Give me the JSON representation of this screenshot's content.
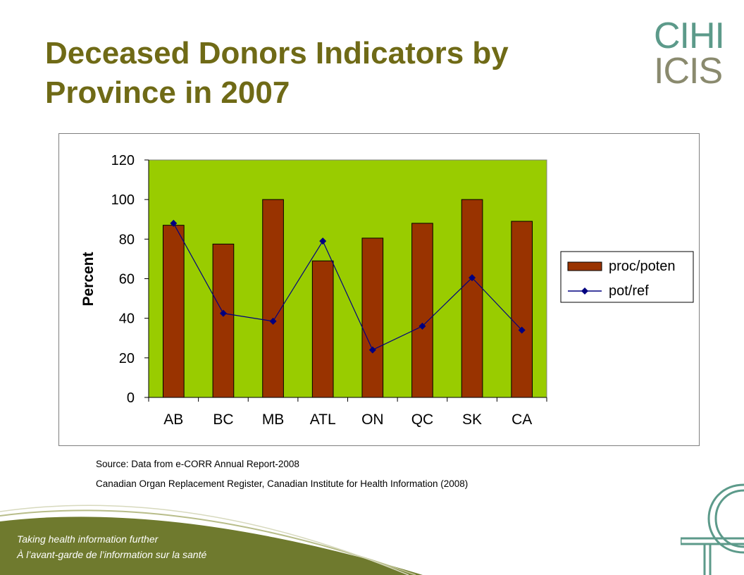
{
  "title_line1": "Deceased Donors Indicators by",
  "title_line2": "Province in 2007",
  "logo": {
    "line1": "CIHI",
    "line2": "ICIS"
  },
  "chart_data": {
    "type": "bar",
    "categories": [
      "AB",
      "BC",
      "MB",
      "ATL",
      "ON",
      "QC",
      "SK",
      "CA"
    ],
    "series": [
      {
        "name": "proc/poten",
        "kind": "bar",
        "color": "#993300",
        "values": [
          87,
          77.5,
          100,
          69,
          80.5,
          88,
          100,
          89
        ]
      },
      {
        "name": "pot/ref",
        "kind": "line",
        "color": "#000080",
        "values": [
          88,
          42.5,
          38.5,
          79,
          24,
          36,
          60.5,
          34
        ]
      }
    ],
    "ylabel": "Percent",
    "xlabel": "",
    "ylim": [
      0,
      120
    ],
    "yticks": [
      0,
      20,
      40,
      60,
      80,
      100,
      120
    ],
    "plot_background": "#99cc00",
    "legend_position": "right",
    "grid": false
  },
  "source_line1": "Source: Data from e-CORR Annual Report-2008",
  "source_line2": "Canadian Organ Replacement Register, Canadian Institute for Health Information (2008)",
  "tagline_en": "Taking health information further",
  "tagline_fr": "À l’avant-garde de l’information sur la santé",
  "colors": {
    "title": "#6f6a16",
    "footer": "#6f7a2e",
    "logo": "#5c9a8a"
  }
}
